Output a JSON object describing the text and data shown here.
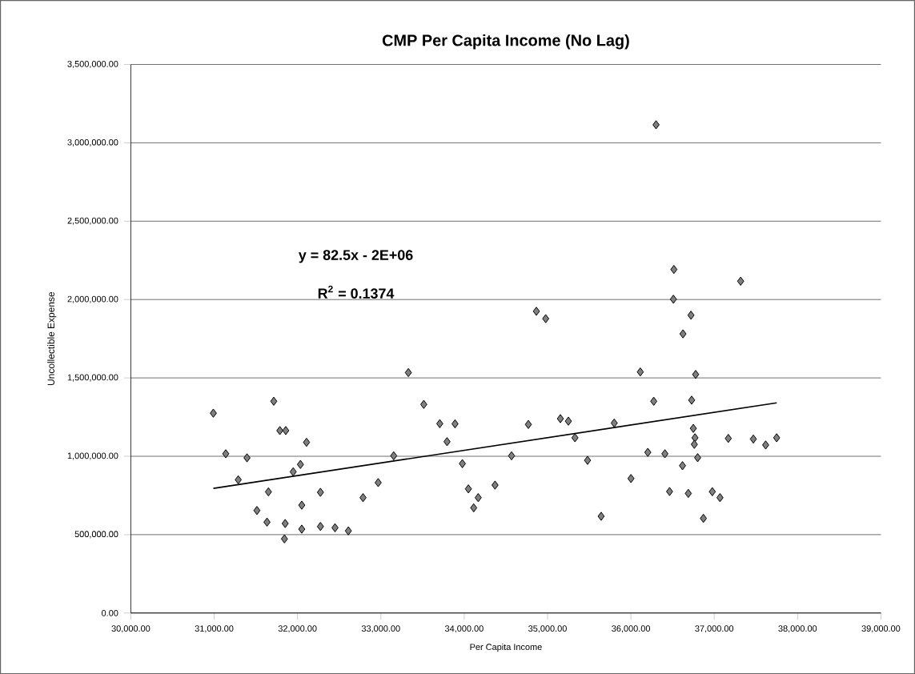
{
  "chart_data": {
    "type": "scatter",
    "title": "CMP Per Capita Income (No Lag)",
    "xlabel": "Per Capita Income",
    "ylabel": "Uncollectible Expense",
    "annotations": [
      "y = 82.5x - 2E+06",
      "R$^{2}$ = 0.1374"
    ],
    "xlim": [
      30000,
      39000
    ],
    "xticks": [
      {
        "value": 30000,
        "label": "30,000.00"
      },
      {
        "value": 31000,
        "label": "31,000.00"
      },
      {
        "value": 32000,
        "label": "32,000.00"
      },
      {
        "value": 33000,
        "label": "33,000.00"
      },
      {
        "value": 34000,
        "label": "34,000.00"
      },
      {
        "value": 35000,
        "label": "35,000.00"
      },
      {
        "value": 36000,
        "label": "36,000.00"
      },
      {
        "value": 37000,
        "label": "37,000.00"
      },
      {
        "value": 38000,
        "label": "38,000.00"
      },
      {
        "value": 39000,
        "label": "39,000.00"
      }
    ],
    "ylim": [
      0,
      3500000
    ],
    "yticks": [
      {
        "value": 0,
        "label": "0.00"
      },
      {
        "value": 500000,
        "label": "500,000.00"
      },
      {
        "value": 1000000,
        "label": "1,000,000.00"
      },
      {
        "value": 1500000,
        "label": "1,500,000.00"
      },
      {
        "value": 2000000,
        "label": "2,000,000.00"
      },
      {
        "value": 2500000,
        "label": "2,500,000.00"
      },
      {
        "value": 3000000,
        "label": "3,000,000.00"
      },
      {
        "value": 3500000,
        "label": "3,500,000.00"
      }
    ],
    "grid": "y",
    "marker": "diamond",
    "series": [
      {
        "color": "#7f7f7f",
        "x": [
          30990,
          31715,
          31788,
          31859,
          32108,
          31139,
          31394,
          32035,
          31948,
          31289,
          31651,
          32275,
          32051,
          31513,
          31634,
          31852,
          31843,
          32051,
          32275,
          32450,
          32610,
          32968,
          32786,
          33154,
          33330,
          33515,
          33707,
          33890,
          33794,
          33978,
          34050,
          34168,
          34114,
          34370,
          34568,
          34770,
          34866,
          34978,
          35154,
          35250,
          35329,
          35480,
          35643,
          35800,
          36001,
          36113,
          36203,
          36274,
          36302,
          36408,
          36516,
          36510,
          36625,
          36619,
          36464,
          37317,
          36721,
          36777,
          36729,
          36749,
          36769,
          36761,
          37169,
          37469,
          37617,
          37749,
          36801,
          36689,
          36977,
          37069,
          36870
        ],
        "values": [
          1275000,
          1351000,
          1164000,
          1164000,
          1089000,
          1016000,
          990000,
          948000,
          901000,
          850000,
          773000,
          770000,
          688000,
          654000,
          580000,
          571000,
          473000,
          535000,
          552000,
          544000,
          524000,
          832000,
          736000,
          1003000,
          1534000,
          1331000,
          1208000,
          1207000,
          1093000,
          953000,
          792000,
          736000,
          671000,
          816000,
          1003000,
          1203000,
          1925000,
          1878000,
          1240000,
          1224000,
          1118000,
          974000,
          617000,
          1212000,
          858000,
          1538000,
          1025000,
          1351000,
          3115000,
          1016000,
          2192000,
          2002000,
          1781000,
          940000,
          775000,
          2117000,
          1900000,
          1522000,
          1358000,
          1178000,
          1118000,
          1076000,
          1114000,
          1110000,
          1072000,
          1118000,
          991000,
          763000,
          774000,
          736000,
          604000
        ]
      },
      {
        "type": "line",
        "color": "#000000",
        "marker": "none",
        "x": [
          30990,
          37750
        ],
        "values": [
          795000,
          1341000
        ]
      }
    ]
  }
}
